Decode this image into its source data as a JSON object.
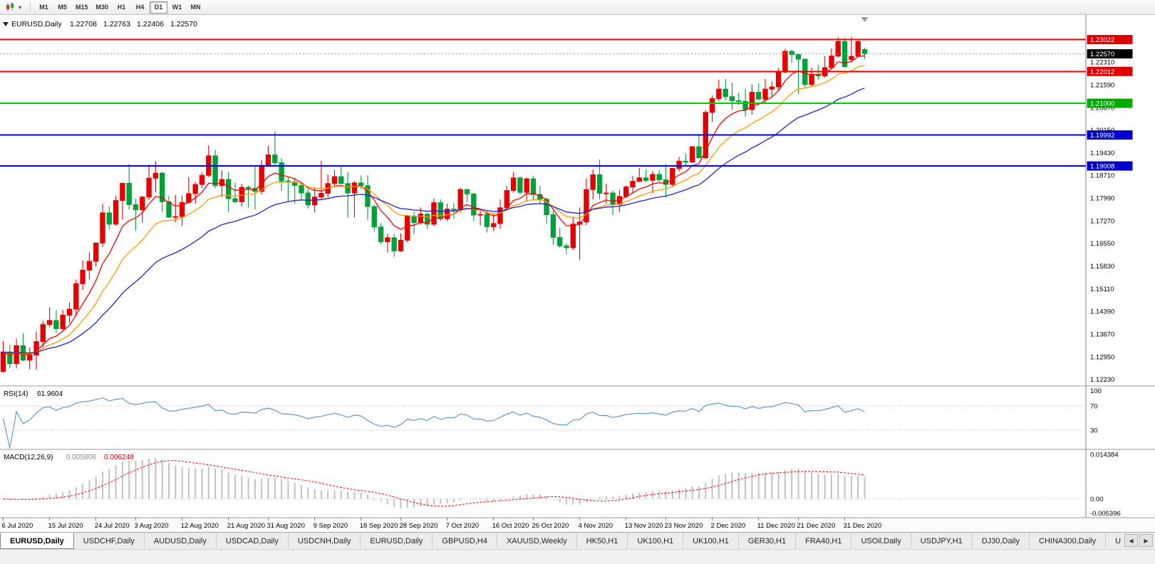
{
  "toolbar": {
    "timeframes": [
      "M1",
      "M5",
      "M15",
      "M30",
      "H1",
      "H4",
      "D1",
      "W1",
      "MN"
    ],
    "active_timeframe": "D1"
  },
  "chart_header": {
    "symbol_title": "EURUSD,Daily",
    "open": "1.22708",
    "high": "1.22763",
    "low": "1.22406",
    "close": "1.22570"
  },
  "indicators": {
    "rsi": {
      "label": "RSI(14)",
      "value": "61.9604"
    },
    "macd": {
      "label": "MACD(12,26,9)",
      "value_main": "0.005806",
      "value_signal": "0.006248"
    }
  },
  "price_axis": {
    "ticks": [
      "1.22310",
      "1.21590",
      "1.20870",
      "1.20150",
      "1.19430",
      "1.18710",
      "1.17990",
      "1.17270",
      "1.16550",
      "1.15830",
      "1.15110",
      "1.14390",
      "1.13670",
      "1.12950",
      "1.12230"
    ]
  },
  "tabs": {
    "items": [
      {
        "label": "EURUSD,Daily",
        "active": true
      },
      {
        "label": "USDCHF,Daily"
      },
      {
        "label": "AUDUSD,Daily"
      },
      {
        "label": "USDCAD,Daily"
      },
      {
        "label": "USDCNH,Daily"
      },
      {
        "label": "EURUSD,Daily"
      },
      {
        "label": "GBPUSD,H4"
      },
      {
        "label": "XAUUSD,Weekly"
      },
      {
        "label": "HK50,H1"
      },
      {
        "label": "UK100,H1"
      },
      {
        "label": "UK100,H1"
      },
      {
        "label": "GER30,H1"
      },
      {
        "label": "FRA40,H1"
      },
      {
        "label": "USOil,Daily"
      },
      {
        "label": "USDJPY,H1"
      },
      {
        "label": "DJ30,Daily"
      },
      {
        "label": "CHINA300,Daily"
      },
      {
        "label": "U"
      }
    ],
    "scroll_left": "◀",
    "scroll_right": "▶"
  },
  "chart_data": {
    "type": "candlestick",
    "symbol": "EURUSD",
    "period": "Daily",
    "ylim": [
      1.1202,
      1.2376
    ],
    "current_price": {
      "value": 1.2257,
      "label": "1.22570",
      "badge_bg": "#000000"
    },
    "hlines": [
      {
        "price": 1.23022,
        "label": "1.23022",
        "color": "#ee0000",
        "badge_bg": "#dd0000"
      },
      {
        "price": 1.22012,
        "label": "1.22012",
        "color": "#ee0000",
        "badge_bg": "#dd0000"
      },
      {
        "price": 1.21,
        "label": "1.21000",
        "color": "#00cc00",
        "badge_bg": "#00aa00"
      },
      {
        "price": 1.19992,
        "label": "1.19992",
        "color": "#0000ee",
        "badge_bg": "#0000cc"
      },
      {
        "price": 1.19008,
        "label": "1.19008",
        "color": "#0000ee",
        "badge_bg": "#0000cc"
      }
    ],
    "candle_colors": {
      "bull": "#e60000",
      "bear": "#00a13a"
    },
    "overlays": [
      {
        "name": "ma-fast",
        "color": "#ff0000"
      },
      {
        "name": "ma-medium",
        "color": "#ff9900"
      },
      {
        "name": "ma-slow",
        "color": "#2222cc"
      }
    ],
    "rsi_panel": {
      "type": "line",
      "period": 14,
      "current": 61.9604,
      "levels": [
        100,
        70,
        30
      ],
      "color": "#5b9bd5"
    },
    "macd_panel": {
      "type": "histogram+line",
      "fast": 12,
      "slow": 26,
      "signal": 9,
      "main_value": 0.005806,
      "signal_value": 0.006248,
      "axis_labels": [
        "0.014384",
        "0.00",
        "-0.005396"
      ],
      "histogram_color": "#c2c2c2",
      "signal_color": "#ff0000"
    },
    "x_ticks": [
      {
        "label": "6 Jul 2020",
        "i": 0
      },
      {
        "label": "15 Jul 2020",
        "i": 7
      },
      {
        "label": "24 Jul 2020",
        "i": 14
      },
      {
        "label": "3 Aug 2020",
        "i": 20
      },
      {
        "label": "12 Aug 2020",
        "i": 27
      },
      {
        "label": "21 Aug 2020",
        "i": 34
      },
      {
        "label": "31 Aug 2020",
        "i": 40
      },
      {
        "label": "9 Sep 2020",
        "i": 47
      },
      {
        "label": "18 Sep 2020",
        "i": 54
      },
      {
        "label": "28 Sep 2020",
        "i": 60
      },
      {
        "label": "7 Oct 2020",
        "i": 67
      },
      {
        "label": "16 Oct 2020",
        "i": 74
      },
      {
        "label": "26 Oct 2020",
        "i": 80
      },
      {
        "label": "4 Nov 2020",
        "i": 87
      },
      {
        "label": "13 Nov 2020",
        "i": 94
      },
      {
        "label": "23 Nov 2020",
        "i": 100
      },
      {
        "label": "2 Dec 2020",
        "i": 107
      },
      {
        "label": "11 Dec 2020",
        "i": 114
      },
      {
        "label": "21 Dec 2020",
        "i": 120
      },
      {
        "label": "31 Dec 2020",
        "i": 127
      }
    ],
    "ohlc": [
      [
        1.1248,
        1.1345,
        1.1244,
        1.131
      ],
      [
        1.131,
        1.1333,
        1.1259,
        1.1273
      ],
      [
        1.1273,
        1.1352,
        1.1258,
        1.133
      ],
      [
        1.133,
        1.137,
        1.128,
        1.1284
      ],
      [
        1.1284,
        1.1324,
        1.1255,
        1.13
      ],
      [
        1.13,
        1.1375,
        1.1254,
        1.1343
      ],
      [
        1.1343,
        1.1408,
        1.1326,
        1.1397
      ],
      [
        1.1397,
        1.1452,
        1.1388,
        1.141
      ],
      [
        1.141,
        1.1442,
        1.137,
        1.1384
      ],
      [
        1.1384,
        1.1444,
        1.1377,
        1.1427
      ],
      [
        1.1427,
        1.1468,
        1.1402,
        1.1446
      ],
      [
        1.1446,
        1.154,
        1.1423,
        1.1527
      ],
      [
        1.1527,
        1.1601,
        1.1507,
        1.157
      ],
      [
        1.157,
        1.1626,
        1.154,
        1.1598
      ],
      [
        1.1598,
        1.1658,
        1.1581,
        1.1656
      ],
      [
        1.1656,
        1.1781,
        1.1644,
        1.1752
      ],
      [
        1.1752,
        1.1773,
        1.1699,
        1.1716
      ],
      [
        1.1716,
        1.1806,
        1.1712,
        1.1791
      ],
      [
        1.1791,
        1.1847,
        1.173,
        1.1846
      ],
      [
        1.1846,
        1.1908,
        1.1762,
        1.1778
      ],
      [
        1.1778,
        1.1797,
        1.1696,
        1.1762
      ],
      [
        1.1762,
        1.1806,
        1.1721,
        1.1802
      ],
      [
        1.1802,
        1.1905,
        1.1793,
        1.1862
      ],
      [
        1.1862,
        1.1916,
        1.1818,
        1.1878
      ],
      [
        1.1878,
        1.1882,
        1.1754,
        1.1787
      ],
      [
        1.1787,
        1.1806,
        1.1736,
        1.1738
      ],
      [
        1.1738,
        1.1808,
        1.1722,
        1.174
      ],
      [
        1.174,
        1.1807,
        1.171,
        1.1785
      ],
      [
        1.1785,
        1.1865,
        1.1782,
        1.1813
      ],
      [
        1.1813,
        1.185,
        1.1781,
        1.1842
      ],
      [
        1.1842,
        1.188,
        1.183,
        1.1871
      ],
      [
        1.1871,
        1.1966,
        1.1865,
        1.1933
      ],
      [
        1.1933,
        1.1952,
        1.183,
        1.1839
      ],
      [
        1.1839,
        1.1887,
        1.1802,
        1.1858
      ],
      [
        1.1858,
        1.1883,
        1.1754,
        1.1797
      ],
      [
        1.1797,
        1.1848,
        1.1783,
        1.1787
      ],
      [
        1.1787,
        1.1844,
        1.1772,
        1.1833
      ],
      [
        1.1833,
        1.1839,
        1.1769,
        1.183
      ],
      [
        1.183,
        1.1902,
        1.1762,
        1.182
      ],
      [
        1.182,
        1.192,
        1.181,
        1.1903
      ],
      [
        1.1903,
        1.1965,
        1.1898,
        1.1936
      ],
      [
        1.1936,
        1.2011,
        1.1904,
        1.1911
      ],
      [
        1.1911,
        1.1925,
        1.1822,
        1.1853
      ],
      [
        1.1853,
        1.1865,
        1.1789,
        1.185
      ],
      [
        1.185,
        1.1865,
        1.1781,
        1.1839
      ],
      [
        1.1839,
        1.1849,
        1.1794,
        1.1815
      ],
      [
        1.1815,
        1.1827,
        1.1766,
        1.1777
      ],
      [
        1.1777,
        1.1834,
        1.1753,
        1.1802
      ],
      [
        1.1802,
        1.1917,
        1.1792,
        1.1814
      ],
      [
        1.1814,
        1.1874,
        1.1801,
        1.1845
      ],
      [
        1.1845,
        1.1888,
        1.1839,
        1.1867
      ],
      [
        1.1867,
        1.19,
        1.1842,
        1.1845
      ],
      [
        1.1845,
        1.1882,
        1.1737,
        1.1815
      ],
      [
        1.1815,
        1.1852,
        1.1737,
        1.1847
      ],
      [
        1.1847,
        1.187,
        1.1827,
        1.1838
      ],
      [
        1.1838,
        1.1871,
        1.1731,
        1.1772
      ],
      [
        1.1772,
        1.1777,
        1.1692,
        1.1707
      ],
      [
        1.1707,
        1.1719,
        1.1651,
        1.166
      ],
      [
        1.166,
        1.1686,
        1.1626,
        1.1673
      ],
      [
        1.1673,
        1.1685,
        1.1612,
        1.1631
      ],
      [
        1.1631,
        1.1687,
        1.1628,
        1.1665
      ],
      [
        1.1665,
        1.1745,
        1.1658,
        1.1742
      ],
      [
        1.1742,
        1.1755,
        1.1684,
        1.1721
      ],
      [
        1.1721,
        1.1769,
        1.1715,
        1.1748
      ],
      [
        1.1748,
        1.1752,
        1.17,
        1.1716
      ],
      [
        1.1716,
        1.1798,
        1.171,
        1.1784
      ],
      [
        1.1784,
        1.1795,
        1.1726,
        1.1733
      ],
      [
        1.1733,
        1.1781,
        1.1725,
        1.1764
      ],
      [
        1.1764,
        1.1782,
        1.1733,
        1.1761
      ],
      [
        1.1761,
        1.1831,
        1.1754,
        1.1826
      ],
      [
        1.1826,
        1.1827,
        1.1786,
        1.1812
      ],
      [
        1.1812,
        1.1815,
        1.1726,
        1.1745
      ],
      [
        1.1745,
        1.1758,
        1.1712,
        1.1747
      ],
      [
        1.1747,
        1.1758,
        1.1689,
        1.1708
      ],
      [
        1.1708,
        1.1747,
        1.1694,
        1.1718
      ],
      [
        1.1718,
        1.1794,
        1.1702,
        1.1768
      ],
      [
        1.1768,
        1.1838,
        1.1761,
        1.1823
      ],
      [
        1.1823,
        1.1881,
        1.1816,
        1.1863
      ],
      [
        1.1863,
        1.1868,
        1.181,
        1.1817
      ],
      [
        1.1817,
        1.1864,
        1.1787,
        1.186
      ],
      [
        1.186,
        1.187,
        1.1794,
        1.181
      ],
      [
        1.181,
        1.1837,
        1.1781,
        1.1795
      ],
      [
        1.1795,
        1.1801,
        1.1718,
        1.1746
      ],
      [
        1.1746,
        1.1759,
        1.165,
        1.1674
      ],
      [
        1.1674,
        1.1705,
        1.164,
        1.1647
      ],
      [
        1.1647,
        1.1656,
        1.1621,
        1.1641
      ],
      [
        1.1641,
        1.174,
        1.1633,
        1.1716
      ],
      [
        1.1716,
        1.1769,
        1.1603,
        1.1723
      ],
      [
        1.1723,
        1.1861,
        1.1713,
        1.1826
      ],
      [
        1.1826,
        1.189,
        1.1795,
        1.1873
      ],
      [
        1.1873,
        1.1921,
        1.1795,
        1.1814
      ],
      [
        1.1814,
        1.1844,
        1.1781,
        1.1815
      ],
      [
        1.1815,
        1.1823,
        1.1745,
        1.1779
      ],
      [
        1.1779,
        1.1824,
        1.1754,
        1.1804
      ],
      [
        1.1804,
        1.1839,
        1.1799,
        1.1834
      ],
      [
        1.1834,
        1.1869,
        1.1815,
        1.1852
      ],
      [
        1.1852,
        1.1894,
        1.185,
        1.1863
      ],
      [
        1.1863,
        1.1891,
        1.1848,
        1.1855
      ],
      [
        1.1855,
        1.1885,
        1.1814,
        1.1874
      ],
      [
        1.1874,
        1.1888,
        1.1851,
        1.1857
      ],
      [
        1.1857,
        1.1906,
        1.18,
        1.1842
      ],
      [
        1.1842,
        1.1895,
        1.1833,
        1.1893
      ],
      [
        1.1893,
        1.193,
        1.1883,
        1.1916
      ],
      [
        1.1916,
        1.1941,
        1.1901,
        1.1913
      ],
      [
        1.1913,
        1.1964,
        1.191,
        1.1962
      ],
      [
        1.1962,
        1.2003,
        1.1924,
        1.1927
      ],
      [
        1.1927,
        1.2078,
        1.1923,
        1.2071
      ],
      [
        1.2071,
        1.2125,
        1.204,
        1.2115
      ],
      [
        1.2115,
        1.2175,
        1.2106,
        1.2145
      ],
      [
        1.2145,
        1.2177,
        1.211,
        1.2121
      ],
      [
        1.2121,
        1.2166,
        1.2079,
        1.2108
      ],
      [
        1.2108,
        1.2134,
        1.2095,
        1.2106
      ],
      [
        1.2106,
        1.2147,
        1.2058,
        1.208
      ],
      [
        1.208,
        1.2159,
        1.2064,
        1.2135
      ],
      [
        1.2135,
        1.2164,
        1.211,
        1.2113
      ],
      [
        1.2113,
        1.2177,
        1.2101,
        1.2145
      ],
      [
        1.2145,
        1.2169,
        1.2122,
        1.2152
      ],
      [
        1.2152,
        1.2212,
        1.2142,
        1.2199
      ],
      [
        1.2199,
        1.2273,
        1.2195,
        1.2265
      ],
      [
        1.2265,
        1.2271,
        1.2229,
        1.2255
      ],
      [
        1.2255,
        1.2258,
        1.213,
        1.224
      ],
      [
        1.224,
        1.2242,
        1.215,
        1.216
      ],
      [
        1.216,
        1.2213,
        1.2154,
        1.219
      ],
      [
        1.219,
        1.2222,
        1.2175,
        1.2187
      ],
      [
        1.2187,
        1.225,
        1.2181,
        1.2213
      ],
      [
        1.2213,
        1.2275,
        1.2208,
        1.225
      ],
      [
        1.225,
        1.231,
        1.2245,
        1.2296
      ],
      [
        1.2296,
        1.2309,
        1.2214,
        1.2216
      ],
      [
        1.2239,
        1.231,
        1.2233,
        1.2249
      ],
      [
        1.225,
        1.2302,
        1.2247,
        1.2296
      ],
      [
        1.22708,
        1.22763,
        1.22406,
        1.2257
      ]
    ]
  }
}
